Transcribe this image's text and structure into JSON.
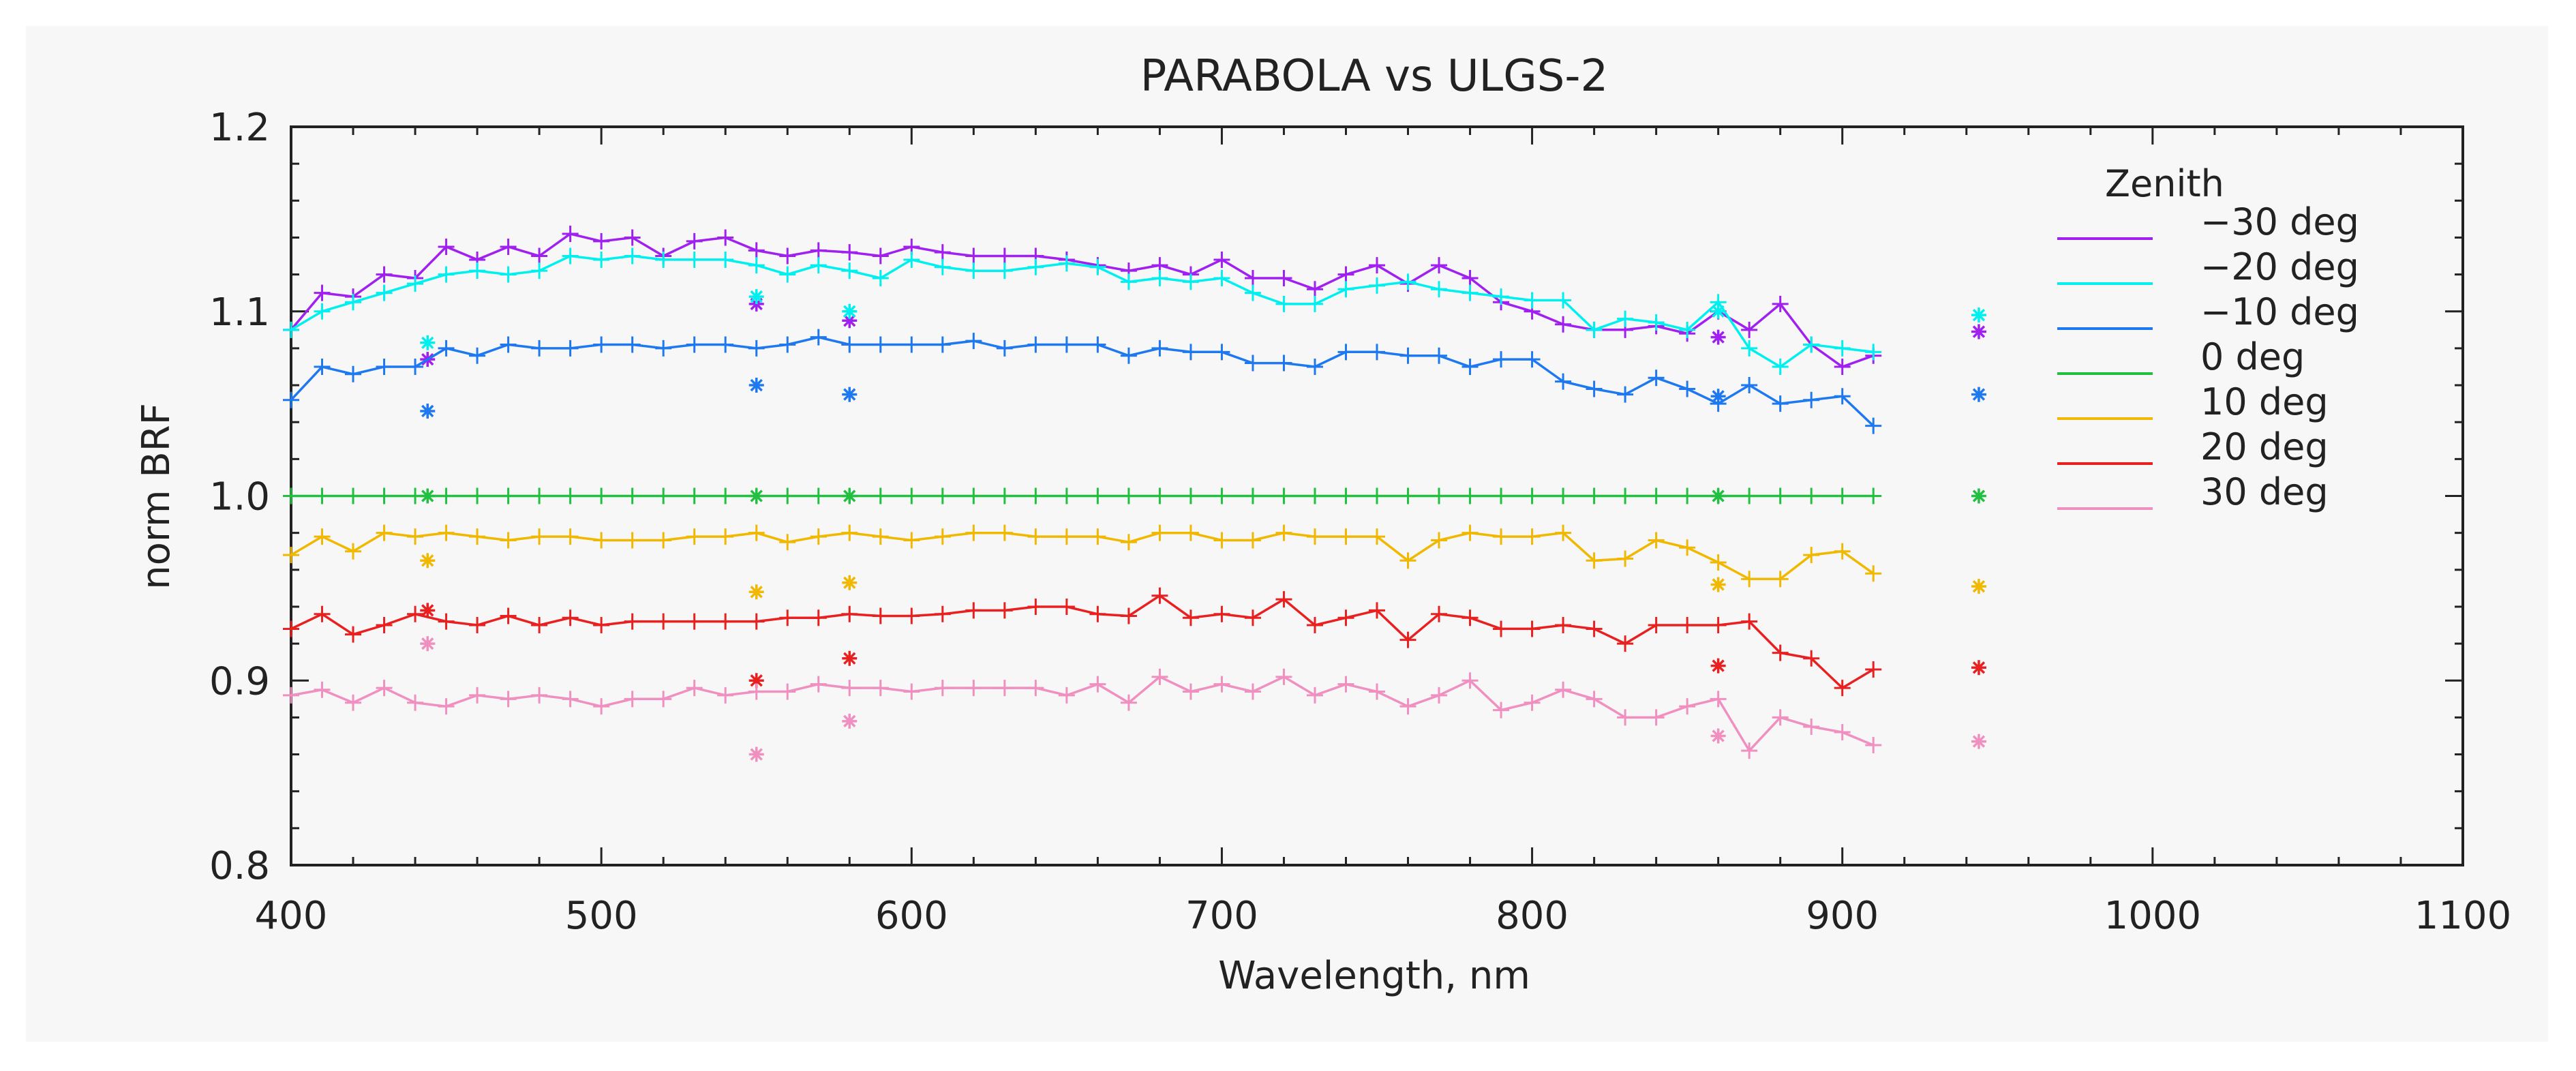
{
  "chart_data": {
    "type": "line",
    "title": "PARABOLA vs ULGS-2",
    "xlabel": "Wavelength, nm",
    "ylabel": "norm BRF",
    "xlim": [
      400,
      1100
    ],
    "ylim": [
      0.8,
      1.2
    ],
    "x_ticks": [
      "400",
      "500",
      "600",
      "700",
      "800",
      "900",
      "1000",
      "1100"
    ],
    "y_ticks": [
      "0.8",
      "0.9",
      "1.0",
      "1.1",
      "1.2"
    ],
    "legend_title": "Zenith",
    "legend_position": "right",
    "x": [
      400,
      410,
      420,
      430,
      440,
      450,
      460,
      470,
      480,
      490,
      500,
      510,
      520,
      530,
      540,
      550,
      560,
      570,
      580,
      590,
      600,
      610,
      620,
      630,
      640,
      650,
      660,
      670,
      680,
      690,
      700,
      710,
      720,
      730,
      740,
      750,
      760,
      770,
      780,
      790,
      800,
      810,
      820,
      830,
      840,
      850,
      860,
      870,
      880,
      890,
      900,
      910
    ],
    "series": [
      {
        "name": "−30 deg",
        "color": "#a020f0",
        "values": [
          1.09,
          1.11,
          1.108,
          1.12,
          1.118,
          1.135,
          1.128,
          1.135,
          1.13,
          1.142,
          1.138,
          1.14,
          1.13,
          1.138,
          1.14,
          1.133,
          1.13,
          1.133,
          1.132,
          1.13,
          1.135,
          1.132,
          1.13,
          1.13,
          1.13,
          1.128,
          1.125,
          1.122,
          1.125,
          1.12,
          1.128,
          1.118,
          1.118,
          1.112,
          1.12,
          1.125,
          1.115,
          1.125,
          1.118,
          1.105,
          1.1,
          1.093,
          1.09,
          1.09,
          1.092,
          1.088,
          1.1,
          1.09,
          1.104,
          1.082,
          1.07,
          1.076
        ],
        "markers": [
          {
            "x": 444,
            "y": 1.074
          },
          {
            "x": 550,
            "y": 1.104
          },
          {
            "x": 580,
            "y": 1.095
          },
          {
            "x": 860,
            "y": 1.086
          },
          {
            "x": 944,
            "y": 1.089
          }
        ]
      },
      {
        "name": "−20 deg",
        "color": "#00f0f0",
        "values": [
          1.09,
          1.1,
          1.105,
          1.11,
          1.115,
          1.12,
          1.122,
          1.12,
          1.122,
          1.13,
          1.128,
          1.13,
          1.128,
          1.128,
          1.128,
          1.125,
          1.12,
          1.125,
          1.122,
          1.118,
          1.128,
          1.124,
          1.122,
          1.122,
          1.124,
          1.126,
          1.124,
          1.116,
          1.118,
          1.116,
          1.118,
          1.11,
          1.104,
          1.104,
          1.112,
          1.114,
          1.116,
          1.112,
          1.11,
          1.108,
          1.106,
          1.106,
          1.09,
          1.096,
          1.094,
          1.09,
          1.105,
          1.08,
          1.07,
          1.082,
          1.08,
          1.078
        ],
        "markers": [
          {
            "x": 444,
            "y": 1.083
          },
          {
            "x": 550,
            "y": 1.108
          },
          {
            "x": 580,
            "y": 1.1
          },
          {
            "x": 860,
            "y": 1.1
          },
          {
            "x": 944,
            "y": 1.098
          }
        ]
      },
      {
        "name": "−10 deg",
        "color": "#1e78f0",
        "values": [
          1.052,
          1.07,
          1.066,
          1.07,
          1.07,
          1.08,
          1.076,
          1.082,
          1.08,
          1.08,
          1.082,
          1.082,
          1.08,
          1.082,
          1.082,
          1.08,
          1.082,
          1.086,
          1.082,
          1.082,
          1.082,
          1.082,
          1.084,
          1.08,
          1.082,
          1.082,
          1.082,
          1.076,
          1.08,
          1.078,
          1.078,
          1.072,
          1.072,
          1.07,
          1.078,
          1.078,
          1.076,
          1.076,
          1.07,
          1.074,
          1.074,
          1.062,
          1.058,
          1.055,
          1.064,
          1.058,
          1.05,
          1.06,
          1.05,
          1.052,
          1.054,
          1.038
        ],
        "markers": [
          {
            "x": 444,
            "y": 1.046
          },
          {
            "x": 550,
            "y": 1.06
          },
          {
            "x": 580,
            "y": 1.055
          },
          {
            "x": 860,
            "y": 1.054
          },
          {
            "x": 944,
            "y": 1.055
          }
        ]
      },
      {
        "name": "0 deg",
        "color": "#22c040",
        "values": [
          1.0,
          1.0,
          1.0,
          1.0,
          1.0,
          1.0,
          1.0,
          1.0,
          1.0,
          1.0,
          1.0,
          1.0,
          1.0,
          1.0,
          1.0,
          1.0,
          1.0,
          1.0,
          1.0,
          1.0,
          1.0,
          1.0,
          1.0,
          1.0,
          1.0,
          1.0,
          1.0,
          1.0,
          1.0,
          1.0,
          1.0,
          1.0,
          1.0,
          1.0,
          1.0,
          1.0,
          1.0,
          1.0,
          1.0,
          1.0,
          1.0,
          1.0,
          1.0,
          1.0,
          1.0,
          1.0,
          1.0,
          1.0,
          1.0,
          1.0,
          1.0,
          1.0
        ],
        "markers": [
          {
            "x": 444,
            "y": 1.0
          },
          {
            "x": 550,
            "y": 1.0
          },
          {
            "x": 580,
            "y": 1.0
          },
          {
            "x": 860,
            "y": 1.0
          },
          {
            "x": 944,
            "y": 1.0
          }
        ]
      },
      {
        "name": "10 deg",
        "color": "#f0b800",
        "values": [
          0.968,
          0.978,
          0.97,
          0.98,
          0.978,
          0.98,
          0.978,
          0.976,
          0.978,
          0.978,
          0.976,
          0.976,
          0.976,
          0.978,
          0.978,
          0.98,
          0.975,
          0.978,
          0.98,
          0.978,
          0.976,
          0.978,
          0.98,
          0.98,
          0.978,
          0.978,
          0.978,
          0.975,
          0.98,
          0.98,
          0.976,
          0.976,
          0.98,
          0.978,
          0.978,
          0.978,
          0.965,
          0.976,
          0.98,
          0.978,
          0.978,
          0.98,
          0.965,
          0.966,
          0.976,
          0.972,
          0.964,
          0.955,
          0.955,
          0.968,
          0.97,
          0.958
        ],
        "markers": [
          {
            "x": 444,
            "y": 0.965
          },
          {
            "x": 550,
            "y": 0.948
          },
          {
            "x": 580,
            "y": 0.953
          },
          {
            "x": 860,
            "y": 0.952
          },
          {
            "x": 944,
            "y": 0.951
          }
        ]
      },
      {
        "name": "20 deg",
        "color": "#e82020",
        "values": [
          0.928,
          0.936,
          0.925,
          0.93,
          0.936,
          0.932,
          0.93,
          0.935,
          0.93,
          0.934,
          0.93,
          0.932,
          0.932,
          0.932,
          0.932,
          0.932,
          0.934,
          0.934,
          0.936,
          0.935,
          0.935,
          0.936,
          0.938,
          0.938,
          0.94,
          0.94,
          0.936,
          0.935,
          0.946,
          0.934,
          0.936,
          0.934,
          0.944,
          0.93,
          0.934,
          0.938,
          0.922,
          0.936,
          0.934,
          0.928,
          0.928,
          0.93,
          0.928,
          0.92,
          0.93,
          0.93,
          0.93,
          0.932,
          0.915,
          0.912,
          0.896,
          0.906
        ],
        "markers": [
          {
            "x": 444,
            "y": 0.938
          },
          {
            "x": 550,
            "y": 0.9
          },
          {
            "x": 580,
            "y": 0.912
          },
          {
            "x": 860,
            "y": 0.908
          },
          {
            "x": 944,
            "y": 0.907
          }
        ]
      },
      {
        "name": "30 deg",
        "color": "#f090c0",
        "values": [
          0.892,
          0.895,
          0.888,
          0.896,
          0.888,
          0.886,
          0.892,
          0.89,
          0.892,
          0.89,
          0.886,
          0.89,
          0.89,
          0.896,
          0.892,
          0.894,
          0.894,
          0.898,
          0.896,
          0.896,
          0.894,
          0.896,
          0.896,
          0.896,
          0.896,
          0.892,
          0.898,
          0.888,
          0.902,
          0.894,
          0.898,
          0.894,
          0.902,
          0.892,
          0.898,
          0.894,
          0.886,
          0.892,
          0.9,
          0.884,
          0.888,
          0.895,
          0.89,
          0.88,
          0.88,
          0.886,
          0.89,
          0.862,
          0.88,
          0.875,
          0.872,
          0.865
        ],
        "markers": [
          {
            "x": 444,
            "y": 0.92
          },
          {
            "x": 550,
            "y": 0.86
          },
          {
            "x": 580,
            "y": 0.878
          },
          {
            "x": 860,
            "y": 0.87
          },
          {
            "x": 944,
            "y": 0.867
          }
        ]
      }
    ]
  }
}
